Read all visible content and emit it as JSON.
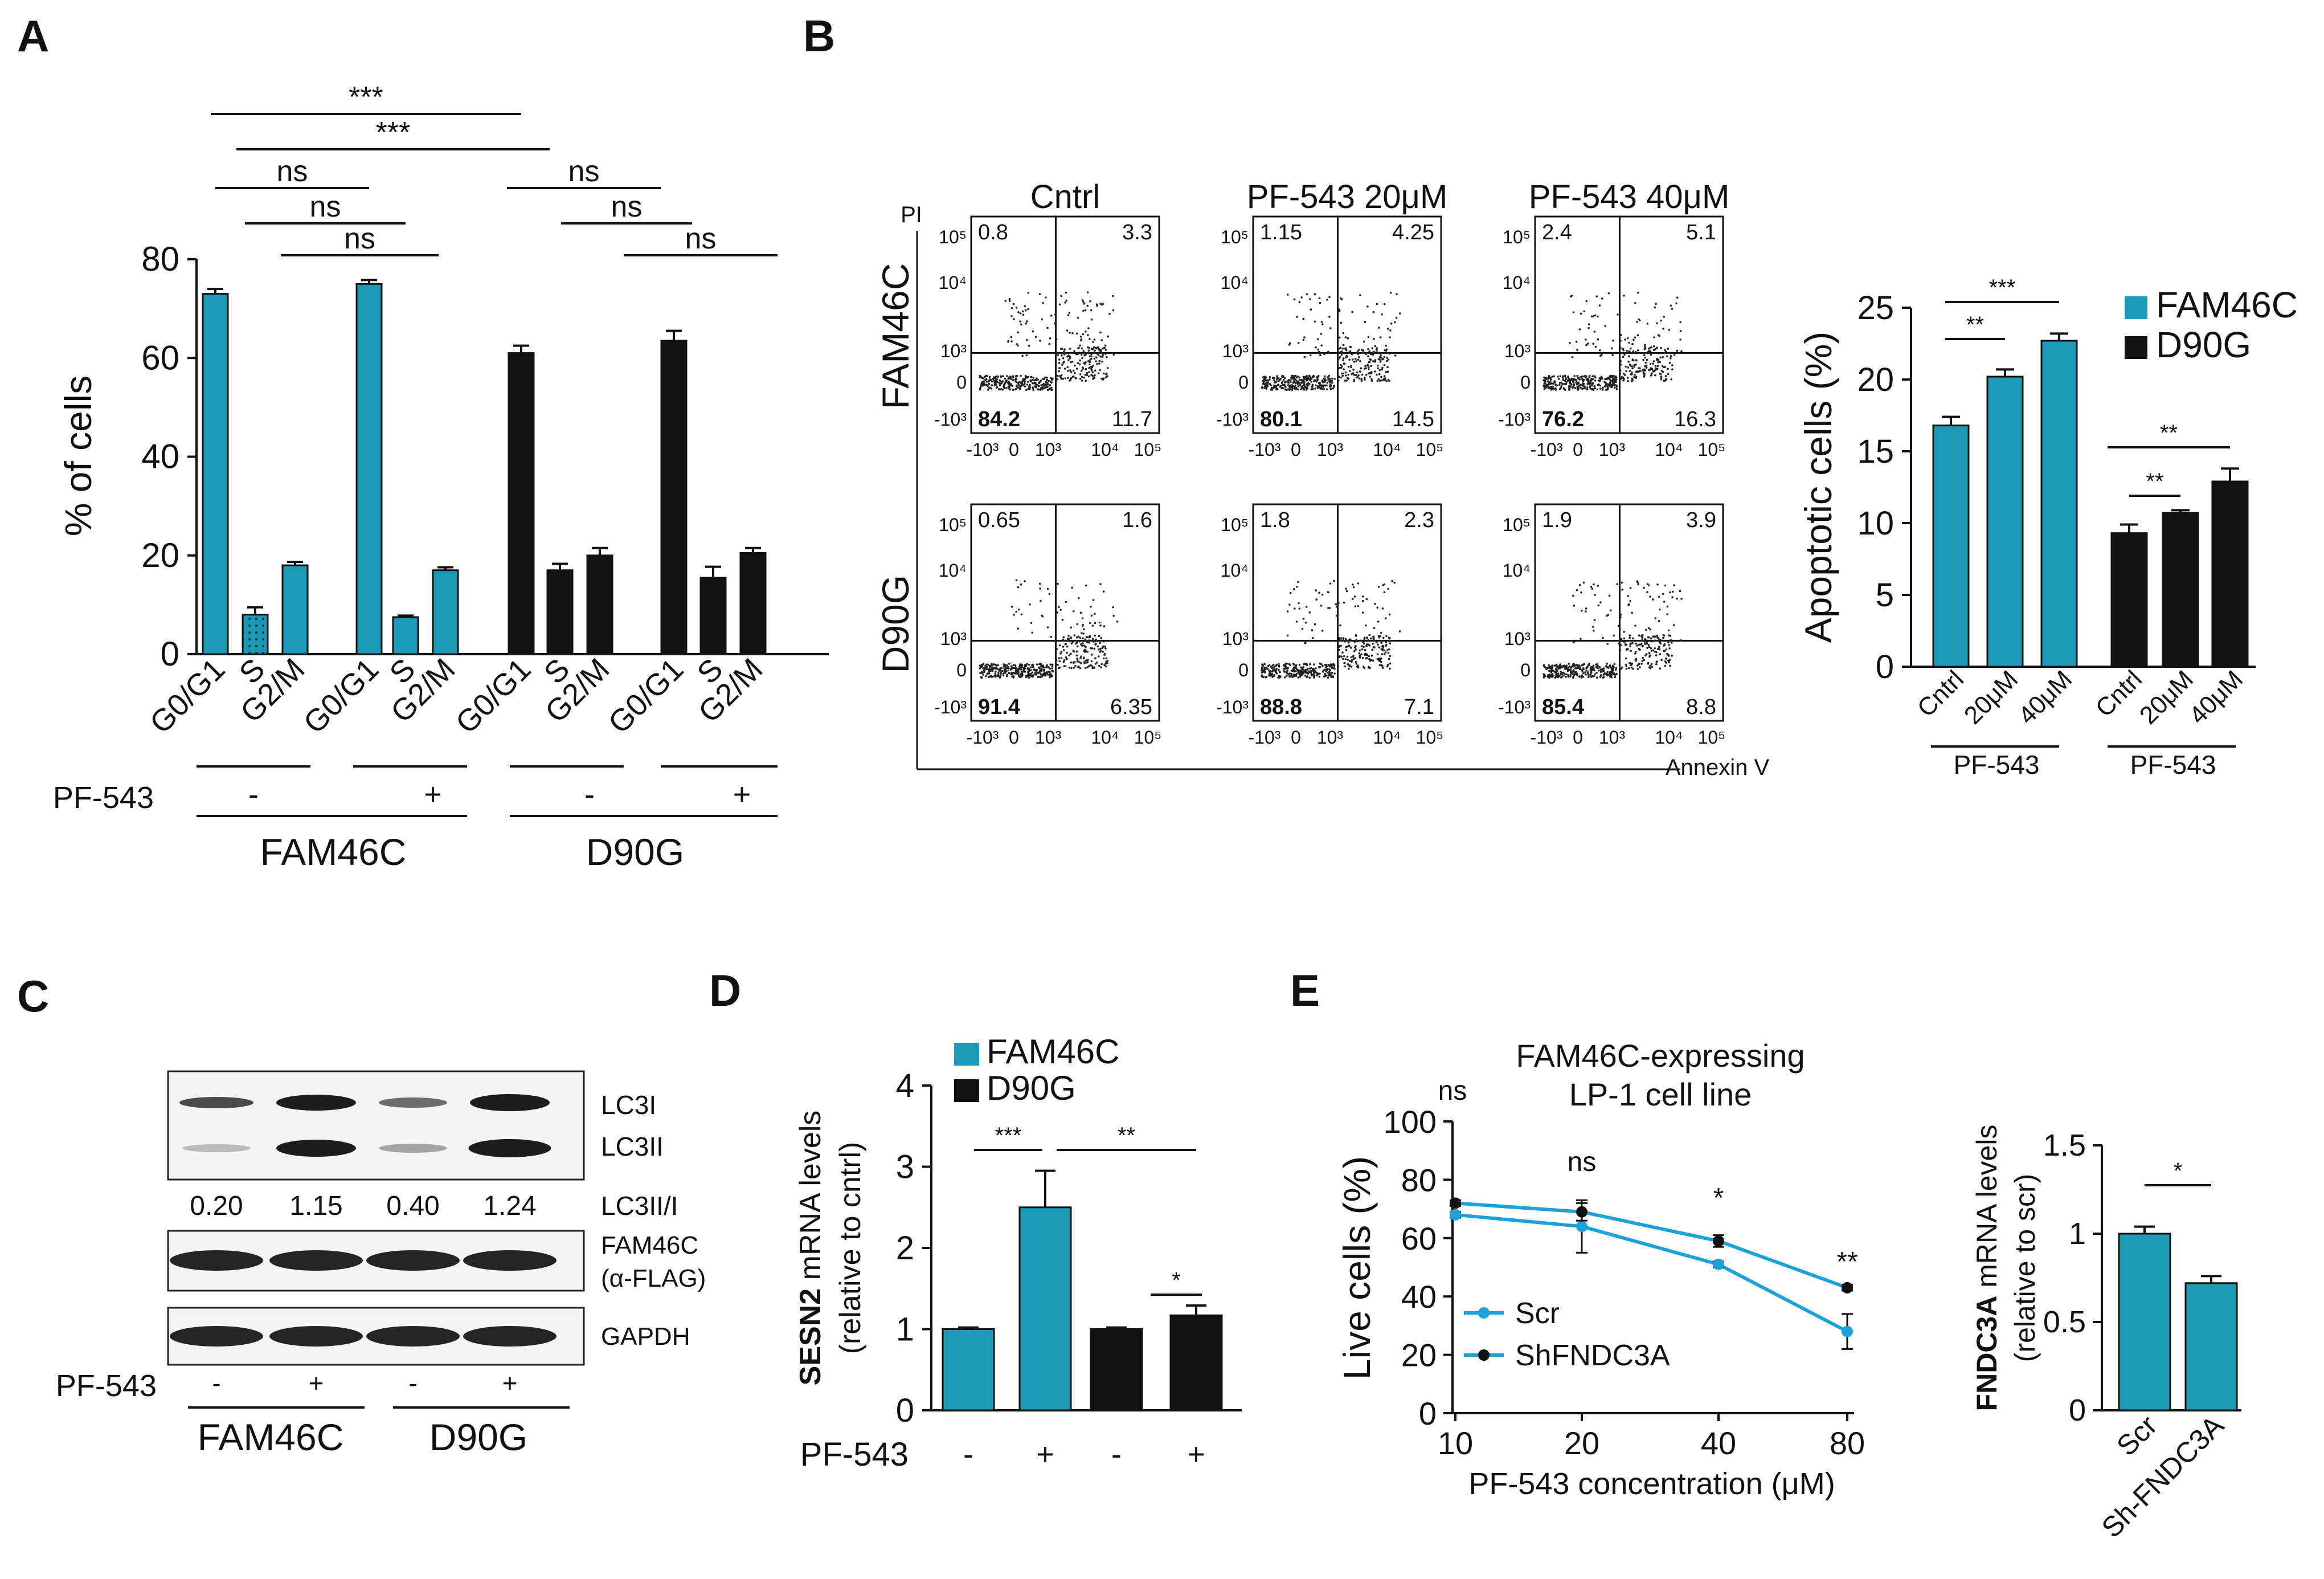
{
  "colors": {
    "teal": "#1a9ab5",
    "black": "#111111",
    "line": "#1aa3d9"
  },
  "panel_labels": [
    "A",
    "B",
    "C",
    "D",
    "E"
  ],
  "chart_data": [
    {
      "id": "A",
      "type": "bar",
      "ylabel": "% of cells",
      "ylim": [
        0,
        80
      ],
      "yticks": [
        "0",
        "20",
        "40",
        "60",
        "80"
      ],
      "categories": [
        "G0/G1",
        "S",
        "G2/M",
        "G0/G1",
        "S",
        "G2/M",
        "G0/G1",
        "S",
        "G2/M",
        "G0/G1",
        "S",
        "G2/M"
      ],
      "values": [
        73,
        8,
        18,
        75,
        7.5,
        17,
        61,
        17,
        20,
        63.5,
        15.5,
        20.5
      ],
      "errors": [
        1,
        1.5,
        0.7,
        0.8,
        0.3,
        0.6,
        1.5,
        1.3,
        1.5,
        2,
        2.2,
        1
      ],
      "bar_colors": [
        "teal",
        "teal",
        "teal",
        "teal",
        "teal",
        "teal",
        "black",
        "black",
        "black",
        "black",
        "black",
        "black"
      ],
      "treatment_label": "PF-543",
      "treatments": [
        "-",
        "+",
        "-",
        "+"
      ],
      "groups": [
        "FAM46C",
        "D90G"
      ],
      "significance": [
        "***",
        "***",
        "ns",
        "ns",
        "ns",
        "ns",
        "ns",
        "ns"
      ]
    },
    {
      "id": "B_flow",
      "type": "scatter",
      "columns": [
        "Cntrl",
        "PF-543 20μM",
        "PF-543 40μM"
      ],
      "rows": [
        "FAM46C",
        "D90G"
      ],
      "y_axis_label": "PI",
      "x_axis_label": "Annexin V",
      "y_ticks": [
        "10⁵",
        "10⁴",
        "10³",
        "0",
        "-10³"
      ],
      "x_ticks": [
        "-10³",
        "0",
        "10³",
        "10⁴",
        "10⁵"
      ],
      "quadrants": [
        [
          [
            "0.8",
            "3.3",
            "84.2",
            "11.7"
          ],
          [
            "1.15",
            "4.25",
            "80.1",
            "14.5"
          ],
          [
            "2.4",
            "5.1",
            "76.2",
            "16.3"
          ]
        ],
        [
          [
            "0.65",
            "1.6",
            "91.4",
            "6.35"
          ],
          [
            "1.8",
            "2.3",
            "88.8",
            "7.1"
          ],
          [
            "1.9",
            "3.9",
            "85.4",
            "8.8"
          ]
        ]
      ]
    },
    {
      "id": "B_bar",
      "type": "bar",
      "ylabel": "Apoptotic cells (%)",
      "ylim": [
        0,
        25
      ],
      "yticks": [
        "0",
        "5",
        "10",
        "15",
        "20",
        "25"
      ],
      "categories": [
        "Cntrl",
        "20μM",
        "40μM",
        "Cntrl",
        "20μM",
        "40μM"
      ],
      "values": [
        16.8,
        20.2,
        22.7,
        9.3,
        10.7,
        12.9
      ],
      "errors": [
        0.6,
        0.5,
        0.5,
        0.6,
        0.2,
        0.9
      ],
      "bar_colors": [
        "teal",
        "teal",
        "teal",
        "black",
        "black",
        "black"
      ],
      "group_labels": [
        "PF-543",
        "PF-543"
      ],
      "legend": [
        "FAM46C",
        "D90G"
      ],
      "significance": [
        "**",
        "***",
        "**",
        "**"
      ]
    },
    {
      "id": "C",
      "type": "table",
      "band_labels": [
        "LC3I",
        "LC3II",
        "FAM46C",
        "(α-FLAG)",
        "GAPDH"
      ],
      "ratio_label": "LC3II/I",
      "ratios": [
        "0.20",
        "1.15",
        "0.40",
        "1.24"
      ],
      "treatment_label": "PF-543",
      "treatments": [
        "-",
        "+",
        "-",
        "+"
      ],
      "groups": [
        "FAM46C",
        "D90G"
      ]
    },
    {
      "id": "D",
      "type": "bar",
      "ylabel_bold": "SESN2",
      "ylabel_rest": " mRNA levels",
      "ylabel2": "(relative to cntrl)",
      "ylim": [
        0,
        4
      ],
      "yticks": [
        "0",
        "1",
        "2",
        "3",
        "4"
      ],
      "values": [
        1.0,
        2.5,
        1.0,
        1.17
      ],
      "errors": [
        0.02,
        0.45,
        0.02,
        0.12
      ],
      "bar_colors": [
        "teal",
        "teal",
        "black",
        "black"
      ],
      "treatment_label": "PF-543",
      "treatments": [
        "-",
        "+",
        "-",
        "+"
      ],
      "legend": [
        "FAM46C",
        "D90G"
      ],
      "significance": [
        "***",
        "**",
        "*"
      ]
    },
    {
      "id": "E_line",
      "type": "line",
      "title": [
        "FAM46C-expressing",
        "LP-1 cell line"
      ],
      "ylabel": "Live cells (%)",
      "xlabel": "PF-543 concentration (μM)",
      "x": [
        10,
        20,
        40,
        80
      ],
      "xtick_labels": [
        "10",
        "20",
        "40",
        "80"
      ],
      "ylim": [
        0,
        100
      ],
      "yticks": [
        "0",
        "20",
        "40",
        "60",
        "80",
        "100"
      ],
      "series": [
        {
          "name": "Scr",
          "values": [
            68,
            64,
            51,
            28
          ],
          "errors": [
            1,
            9,
            1,
            6
          ]
        },
        {
          "name": "ShFNDC3A",
          "values": [
            72,
            69,
            59,
            43
          ],
          "errors": [
            1,
            3,
            2,
            1
          ]
        }
      ],
      "annotations": [
        "ns",
        "ns",
        "*",
        "**"
      ]
    },
    {
      "id": "E_bar",
      "type": "bar",
      "ylabel_bold": "FNDC3A",
      "ylabel_rest": " mRNA levels",
      "ylabel2": "(relative to scr)",
      "ylim": [
        0,
        1.5
      ],
      "yticks": [
        "0",
        "0.5",
        "1",
        "1.5"
      ],
      "categories": [
        "Scr",
        "Sh-FNDC3A"
      ],
      "values": [
        1.0,
        0.72
      ],
      "errors": [
        0.04,
        0.04
      ],
      "significance": [
        "*"
      ]
    }
  ]
}
